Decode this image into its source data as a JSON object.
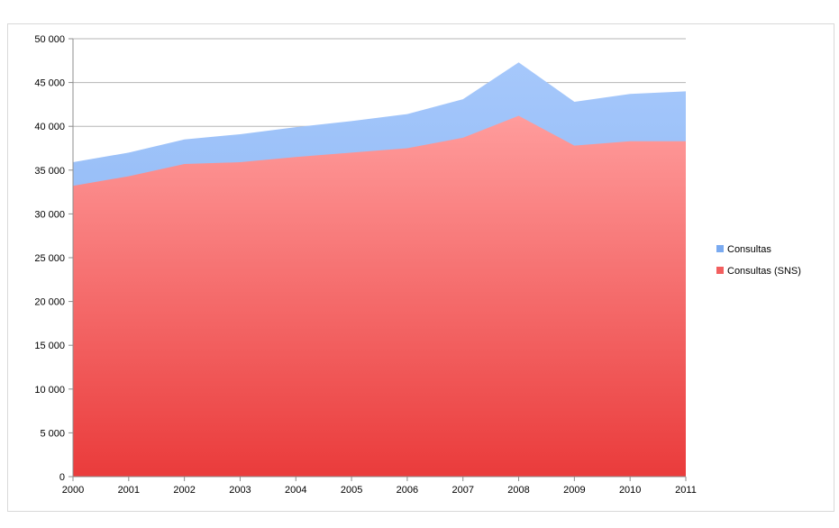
{
  "chart_data": {
    "type": "area",
    "stacked": false,
    "categories": [
      "2000",
      "2001",
      "2002",
      "2003",
      "2004",
      "2005",
      "2006",
      "2007",
      "2008",
      "2009",
      "2010",
      "2011"
    ],
    "series": [
      {
        "name": "Consultas",
        "values": [
          35900,
          37000,
          38500,
          39100,
          39900,
          40600,
          41400,
          43100,
          47300,
          42800,
          43700,
          44000
        ],
        "color": "#8fbaf5"
      },
      {
        "name": "Consultas (SNS)",
        "values": [
          33200,
          34300,
          35700,
          35900,
          36500,
          37000,
          37500,
          38700,
          41200,
          37800,
          38300,
          38300
        ],
        "color": "#f25f5f"
      }
    ],
    "ylim": [
      0,
      50000
    ],
    "yticks": [
      "0",
      "5 000",
      "10 000",
      "15 000",
      "20 000",
      "25 000",
      "30 000",
      "35 000",
      "40 000",
      "45 000",
      "50 000"
    ],
    "ytick_values": [
      0,
      5000,
      10000,
      15000,
      20000,
      25000,
      30000,
      35000,
      40000,
      45000,
      50000
    ],
    "grid": true,
    "legend_position": "right"
  }
}
